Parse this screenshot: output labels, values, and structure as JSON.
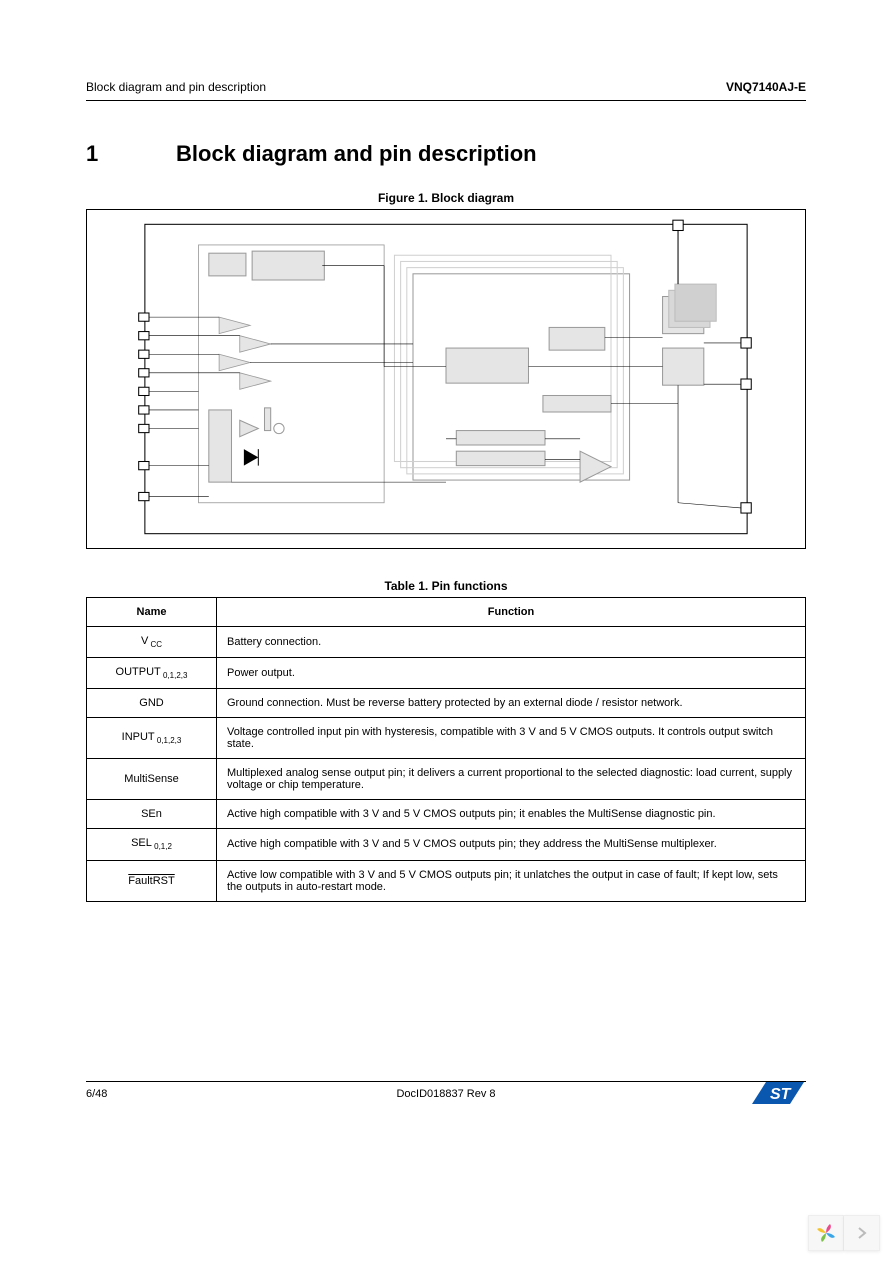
{
  "header": {
    "left": "Block diagram and pin description",
    "right": "VNQ7140AJ-E"
  },
  "section": {
    "num": "1",
    "title": "Block diagram and pin description"
  },
  "figure": {
    "caption": "Figure 1. Block diagram"
  },
  "diagram_style": {
    "outer_border": "#000000",
    "block_fill": "#e5e5e5",
    "block_stroke": "#9a9a9a",
    "line_width": 0.8,
    "bg": "#ffffff"
  },
  "table": {
    "caption": "Table 1. Pin functions",
    "headers": [
      "Name",
      "Function"
    ],
    "rows": [
      {
        "name": "V",
        "sub": "CC",
        "func": "Battery connection."
      },
      {
        "name": "OUTPUT",
        "sub": "0,1,2,3",
        "func": "Power output."
      },
      {
        "name": "GND",
        "sub": "",
        "func": "Ground connection. Must be reverse battery protected by an external diode / resistor network."
      },
      {
        "name": "INPUT",
        "sub": "0,1,2,3",
        "func": "Voltage controlled input pin with hysteresis, compatible with 3 V and 5 V CMOS outputs. It controls output switch state."
      },
      {
        "name": "MultiSense",
        "sub": "",
        "func": "Multiplexed analog sense output pin; it delivers a current proportional to the selected diagnostic: load current, supply voltage or chip temperature."
      },
      {
        "name": "SEn",
        "sub": "",
        "func": "Active high compatible with 3 V and 5 V CMOS outputs pin; it enables the MultiSense diagnostic pin."
      },
      {
        "name": "SEL",
        "sub": "0,1,2",
        "func": "Active high compatible with 3 V and 5 V CMOS outputs pin; they address the MultiSense multiplexer."
      },
      {
        "name": "FaultRST",
        "sub": "",
        "overline": true,
        "func": "Active low compatible with 3 V and 5 V CMOS outputs pin; it unlatches the output in case of fault; If kept low, sets the outputs in auto-restart mode."
      }
    ]
  },
  "footer": {
    "left": "6/48",
    "center": "DocID018837 Rev 8"
  },
  "logo_colors": {
    "blue": "#0a57b0",
    "white": "#ffffff"
  },
  "corner_petals": [
    "#f4c430",
    "#e94b8b",
    "#3aa6e8",
    "#7cc24a"
  ]
}
